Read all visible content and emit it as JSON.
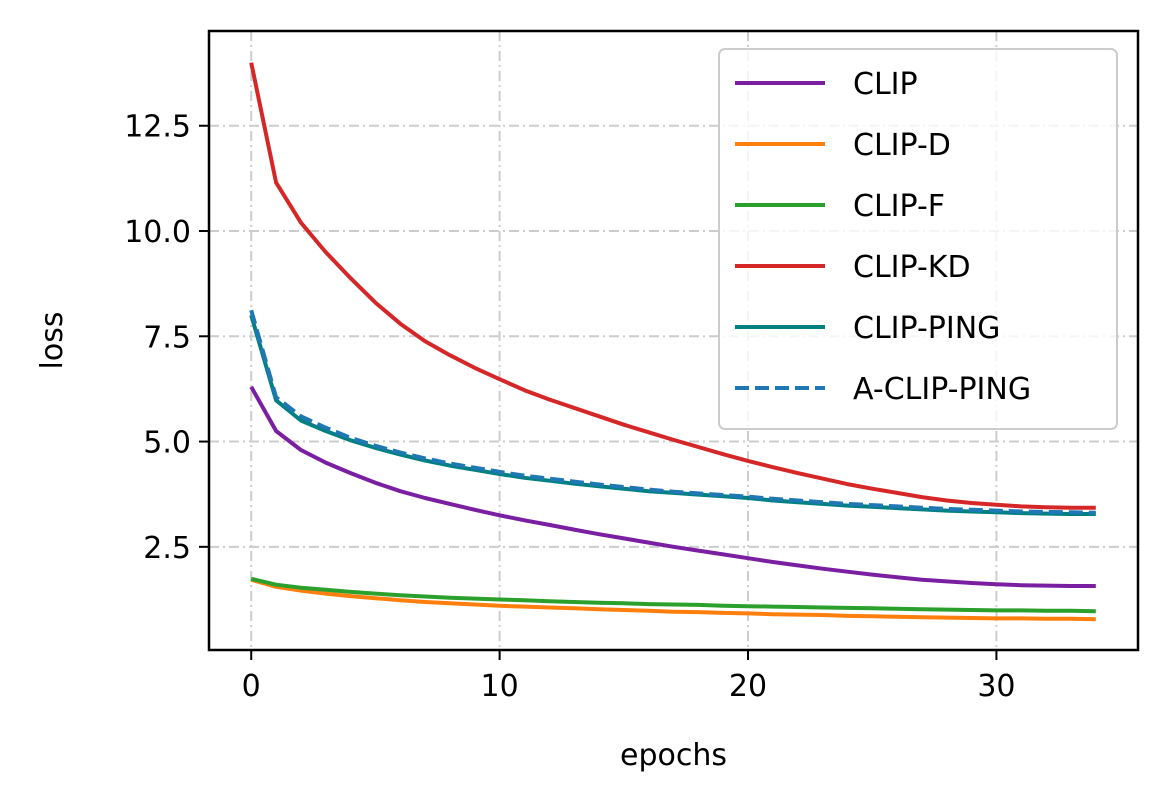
{
  "chart_data": {
    "type": "line",
    "title": "",
    "xlabel": "epochs",
    "ylabel": "loss",
    "xlim": [
      -1.7,
      35.7
    ],
    "ylim": [
      0.05,
      14.75
    ],
    "xticks": [
      0,
      10,
      20,
      30
    ],
    "xtick_labels": [
      "0",
      "10",
      "20",
      "30"
    ],
    "yticks": [
      2.5,
      5.0,
      7.5,
      10.0,
      12.5
    ],
    "ytick_labels": [
      "2.5",
      "5.0",
      "7.5",
      "10.0",
      "12.5"
    ],
    "grid": true,
    "legend_position": "top-right",
    "x": [
      0,
      1,
      2,
      3,
      4,
      5,
      6,
      7,
      8,
      9,
      10,
      11,
      12,
      13,
      14,
      15,
      16,
      17,
      18,
      19,
      20,
      21,
      22,
      23,
      24,
      25,
      26,
      27,
      28,
      29,
      30,
      31,
      32,
      33,
      34
    ],
    "series": [
      {
        "name": "CLIP",
        "color": "#7b1fa2",
        "dash": "solid",
        "values": [
          6.3,
          5.25,
          4.8,
          4.5,
          4.25,
          4.02,
          3.82,
          3.66,
          3.52,
          3.38,
          3.25,
          3.13,
          3.02,
          2.91,
          2.8,
          2.7,
          2.6,
          2.5,
          2.41,
          2.32,
          2.23,
          2.14,
          2.06,
          1.98,
          1.91,
          1.84,
          1.78,
          1.72,
          1.68,
          1.64,
          1.61,
          1.59,
          1.58,
          1.57,
          1.57
        ]
      },
      {
        "name": "CLIP-D",
        "color": "#ff7f0e",
        "dash": "solid",
        "values": [
          1.72,
          1.55,
          1.46,
          1.39,
          1.33,
          1.28,
          1.23,
          1.19,
          1.16,
          1.13,
          1.1,
          1.08,
          1.06,
          1.04,
          1.02,
          1.0,
          0.98,
          0.96,
          0.95,
          0.93,
          0.92,
          0.9,
          0.89,
          0.88,
          0.86,
          0.85,
          0.84,
          0.83,
          0.82,
          0.81,
          0.8,
          0.8,
          0.79,
          0.79,
          0.78
        ]
      },
      {
        "name": "CLIP-F",
        "color": "#2ca02c",
        "dash": "solid",
        "values": [
          1.74,
          1.6,
          1.53,
          1.48,
          1.43,
          1.39,
          1.35,
          1.32,
          1.29,
          1.27,
          1.25,
          1.23,
          1.21,
          1.19,
          1.17,
          1.16,
          1.14,
          1.13,
          1.12,
          1.1,
          1.09,
          1.08,
          1.07,
          1.06,
          1.05,
          1.04,
          1.03,
          1.02,
          1.01,
          1.0,
          0.99,
          0.99,
          0.98,
          0.98,
          0.97
        ]
      },
      {
        "name": "CLIP-KD",
        "color": "#d62728",
        "dash": "solid",
        "values": [
          14.0,
          11.15,
          10.2,
          9.5,
          8.88,
          8.3,
          7.8,
          7.38,
          7.05,
          6.75,
          6.48,
          6.22,
          6.0,
          5.8,
          5.6,
          5.4,
          5.22,
          5.04,
          4.87,
          4.7,
          4.54,
          4.39,
          4.25,
          4.12,
          3.99,
          3.88,
          3.78,
          3.68,
          3.6,
          3.54,
          3.5,
          3.46,
          3.44,
          3.43,
          3.43
        ]
      },
      {
        "name": "CLIP-PING",
        "color": "#008080",
        "dash": "solid",
        "values": [
          8.0,
          5.98,
          5.5,
          5.25,
          5.03,
          4.85,
          4.69,
          4.55,
          4.43,
          4.33,
          4.23,
          4.14,
          4.07,
          4.0,
          3.94,
          3.88,
          3.82,
          3.78,
          3.74,
          3.7,
          3.66,
          3.6,
          3.56,
          3.52,
          3.48,
          3.45,
          3.42,
          3.39,
          3.36,
          3.34,
          3.32,
          3.3,
          3.29,
          3.28,
          3.28
        ]
      },
      {
        "name": "A-CLIP-PING",
        "color": "#1f77b4",
        "dash": "dashed",
        "values": [
          8.12,
          6.05,
          5.6,
          5.33,
          5.09,
          4.9,
          4.74,
          4.6,
          4.48,
          4.38,
          4.28,
          4.19,
          4.12,
          4.05,
          3.98,
          3.92,
          3.86,
          3.81,
          3.77,
          3.73,
          3.69,
          3.64,
          3.6,
          3.56,
          3.52,
          3.49,
          3.46,
          3.43,
          3.4,
          3.38,
          3.36,
          3.34,
          3.33,
          3.32,
          3.31
        ]
      }
    ]
  }
}
